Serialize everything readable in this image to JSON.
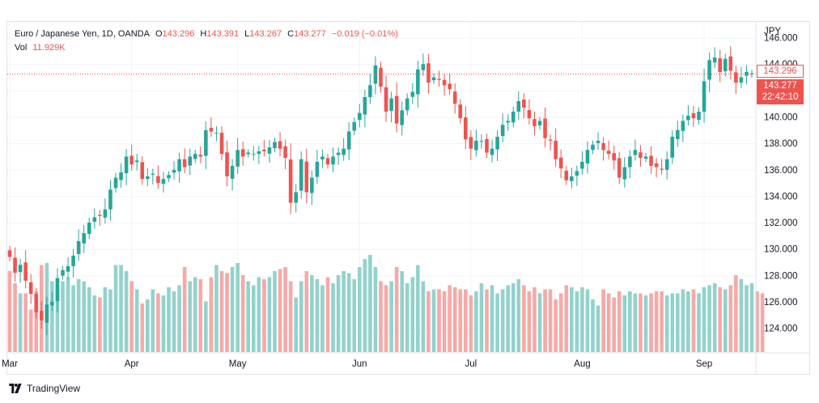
{
  "legend": {
    "symbol": "Euro / Japanese Yen, 1D, OANDA",
    "open_label": "O",
    "open": "143.296",
    "high_label": "H",
    "high": "143.391",
    "low_label": "L",
    "low": "143.267",
    "close_label": "C",
    "close": "143.277",
    "change": "−0.019 (−0.01%)",
    "vol_label": "Vol",
    "vol": "11.929K"
  },
  "axis": {
    "currency": "JPY"
  },
  "tags": {
    "open_price": "143.296",
    "last_price": "143.277",
    "countdown": "22:42:10"
  },
  "footer": {
    "brand": "TradingView"
  },
  "colors": {
    "up": "#26a69a",
    "down": "#ef5350",
    "vol_up": "#93d2cc",
    "vol_down": "#f6a9a7"
  },
  "chart_data": {
    "type": "candlestick",
    "price_ticks": [
      124,
      126,
      128,
      130,
      132,
      134,
      136,
      138,
      140,
      142,
      144,
      146
    ],
    "price_tick_labels": [
      "124.000",
      "126.000",
      "128.000",
      "130.000",
      "132.000",
      "134.000",
      "136.000",
      "138.000",
      "140.000",
      "142.000",
      "144.000",
      "146.000"
    ],
    "ylim": [
      122.2,
      147.2
    ],
    "months": [
      {
        "label": "Mar",
        "index": 0
      },
      {
        "label": "Apr",
        "index": 23
      },
      {
        "label": "May",
        "index": 43
      },
      {
        "label": "Jun",
        "index": 66
      },
      {
        "label": "Jul",
        "index": 87
      },
      {
        "label": "Aug",
        "index": 108
      },
      {
        "label": "Sep",
        "index": 131
      }
    ],
    "closes": [
      129.4,
      128.2,
      128.8,
      127.6,
      126.6,
      125.2,
      124.6,
      125.8,
      126.0,
      127.8,
      128.4,
      128.7,
      129.5,
      130.6,
      131.2,
      132.0,
      132.4,
      132.5,
      133.0,
      134.5,
      135.4,
      135.8,
      137.0,
      136.4,
      136.7,
      135.3,
      135.5,
      135.7,
      135.0,
      135.3,
      135.6,
      136.0,
      136.8,
      136.2,
      137.0,
      137.2,
      137.0,
      139.0,
      138.9,
      138.8,
      137.2,
      135.5,
      136.3,
      137.5,
      137.0,
      137.3,
      137.2,
      137.4,
      137.4,
      137.7,
      138.1,
      137.6,
      136.9,
      133.5,
      134.3,
      136.8,
      134.3,
      135.4,
      136.6,
      137.0,
      136.4,
      137.0,
      137.3,
      137.6,
      138.9,
      139.6,
      140.3,
      141.5,
      142.4,
      143.9,
      142.3,
      140.4,
      141.4,
      139.5,
      140.5,
      141.4,
      141.9,
      143.6,
      144.0,
      142.6,
      143.0,
      142.8,
      142.4,
      142.1,
      141.0,
      139.9,
      138.3,
      137.6,
      138.2,
      138.2,
      137.3,
      137.6,
      138.5,
      139.4,
      139.7,
      140.4,
      141.2,
      140.7,
      139.9,
      139.3,
      139.7,
      138.4,
      138.2,
      136.8,
      136.1,
      135.2,
      135.5,
      135.9,
      136.6,
      137.5,
      137.9,
      138.2,
      137.5,
      137.2,
      136.7,
      135.4,
      136.2,
      137.0,
      137.5,
      136.9,
      137.0,
      136.3,
      136.2,
      136.0,
      136.8,
      138.5,
      139.0,
      139.7,
      140.1,
      139.9,
      140.4,
      142.7,
      144.3,
      144.5,
      143.4,
      144.4,
      143.5,
      142.6,
      143.0,
      143.4,
      143.3
    ],
    "volumes": [
      0.4,
      0.34,
      0.29,
      0.29,
      0.21,
      0.3,
      0.43,
      0.44,
      0.35,
      0.33,
      0.35,
      0.37,
      0.33,
      0.36,
      0.35,
      0.32,
      0.28,
      0.27,
      0.32,
      0.31,
      0.43,
      0.43,
      0.4,
      0.35,
      0.31,
      0.24,
      0.26,
      0.31,
      0.29,
      0.28,
      0.32,
      0.3,
      0.33,
      0.42,
      0.35,
      0.37,
      0.36,
      0.25,
      0.37,
      0.43,
      0.4,
      0.39,
      0.42,
      0.44,
      0.38,
      0.35,
      0.33,
      0.37,
      0.36,
      0.37,
      0.4,
      0.41,
      0.42,
      0.35,
      0.27,
      0.35,
      0.4,
      0.38,
      0.36,
      0.33,
      0.37,
      0.34,
      0.38,
      0.4,
      0.39,
      0.36,
      0.42,
      0.46,
      0.48,
      0.42,
      0.35,
      0.33,
      0.35,
      0.42,
      0.4,
      0.34,
      0.37,
      0.43,
      0.35,
      0.3,
      0.31,
      0.31,
      0.3,
      0.33,
      0.32,
      0.31,
      0.31,
      0.28,
      0.3,
      0.34,
      0.31,
      0.33,
      0.29,
      0.31,
      0.33,
      0.34,
      0.36,
      0.33,
      0.3,
      0.32,
      0.29,
      0.31,
      0.31,
      0.26,
      0.29,
      0.33,
      0.32,
      0.3,
      0.32,
      0.31,
      0.26,
      0.23,
      0.31,
      0.29,
      0.27,
      0.3,
      0.28,
      0.3,
      0.29,
      0.29,
      0.28,
      0.29,
      0.3,
      0.3,
      0.28,
      0.29,
      0.29,
      0.31,
      0.3,
      0.31,
      0.29,
      0.32,
      0.33,
      0.34,
      0.32,
      0.31,
      0.33,
      0.38,
      0.36,
      0.33,
      0.34,
      0.3,
      0.29
    ],
    "volume_max": 1.0,
    "current_price": 143.277
  }
}
